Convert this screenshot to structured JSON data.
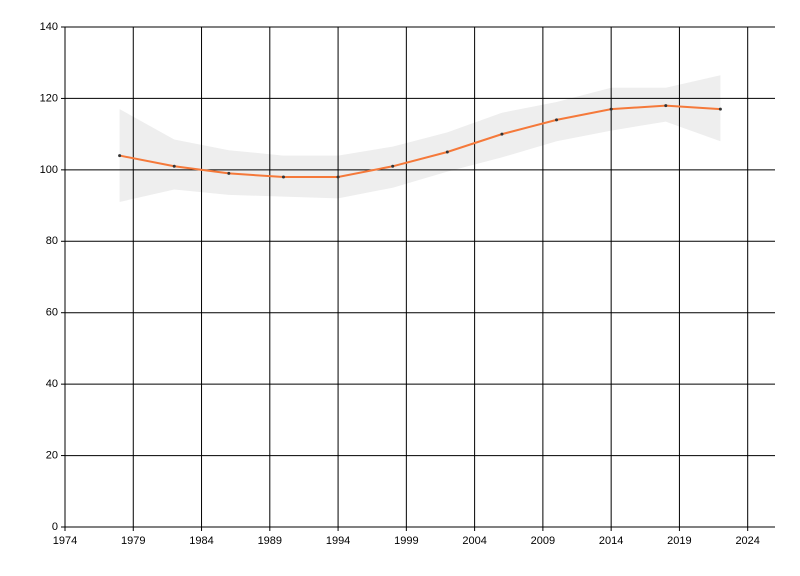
{
  "chart_data": {
    "type": "line",
    "x": [
      1978,
      1982,
      1986,
      1990,
      1994,
      1998,
      2002,
      2006,
      2010,
      2014,
      2018,
      2022
    ],
    "series": [
      {
        "color": "#f5793a",
        "values": [
          104,
          101,
          99,
          98,
          98,
          101,
          105,
          110,
          114,
          117,
          118,
          117
        ],
        "lower": [
          91,
          94.5,
          93,
          92.5,
          92,
          95,
          99.5,
          103.5,
          108,
          111,
          113.5,
          108
        ],
        "upper": [
          117,
          108.5,
          105.5,
          104,
          104,
          106.5,
          110.5,
          116,
          119,
          123,
          123,
          126.5
        ],
        "band_color": "#eeeeee"
      }
    ],
    "xlim": [
      1974,
      2026
    ],
    "xticks": [
      1974,
      1979,
      1984,
      1989,
      1994,
      1999,
      2004,
      2009,
      2014,
      2019,
      2024
    ],
    "ylim": [
      0,
      140
    ],
    "yticks": [
      0,
      20,
      40,
      60,
      80,
      100,
      120,
      140
    ],
    "grid": true
  }
}
